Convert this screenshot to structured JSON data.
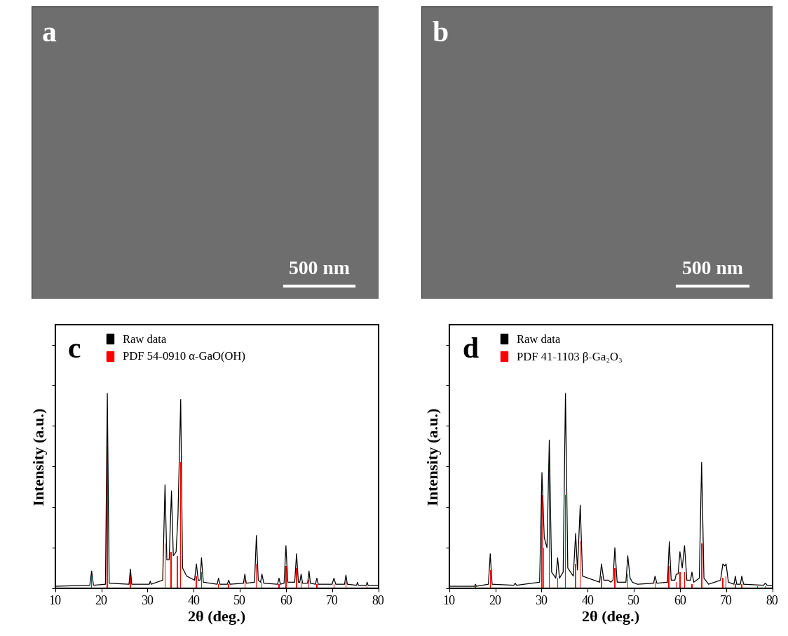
{
  "images": [
    {
      "label": "a",
      "scale_bar": "500 nm"
    },
    {
      "label": "b",
      "scale_bar": "500 nm"
    }
  ],
  "chart_data": [
    {
      "type": "line",
      "annotations": [
        "c"
      ],
      "x_label": "2θ (deg.)",
      "y_label": "Intensity (a.u.)",
      "xlim": [
        10,
        80
      ],
      "xticks": [
        10,
        20,
        30,
        40,
        50,
        60,
        70,
        80
      ],
      "ylim": [
        0,
        130
      ],
      "yticks": [
        0,
        20,
        40,
        60,
        80,
        100,
        120
      ],
      "tick_labels": "x",
      "legend": "upper left",
      "series": [
        {
          "name": "Raw data",
          "type": "line",
          "color": "#000000",
          "x": [
            10,
            17.5,
            17.9,
            18.3,
            20.9,
            21.3,
            21.7,
            26.0,
            26.3,
            26.6,
            30.4,
            30.6,
            30.8,
            33.3,
            33.8,
            34.2,
            34.7,
            35.2,
            35.6,
            36.2,
            36.6,
            37.2,
            37.6,
            38.5,
            40.2,
            40.6,
            41.0,
            41.4,
            41.7,
            42.1,
            45.1,
            45.4,
            45.7,
            47.3,
            47.6,
            47.9,
            50.8,
            51.1,
            51.4,
            53.2,
            53.6,
            54.0,
            54.5,
            54.8,
            55.2,
            58.2,
            58.5,
            58.8,
            59.6,
            60.0,
            60.4,
            61.9,
            62.3,
            62.7,
            63.0,
            63.3,
            63.6,
            64.7,
            65.0,
            65.3,
            66.4,
            66.7,
            67.0,
            70.0,
            70.4,
            70.8,
            72.7,
            73.0,
            73.3,
            75.3,
            75.5,
            75.7,
            77.4,
            77.6,
            77.8,
            80
          ],
          "values": [
            1,
            1.5,
            8.5,
            1.5,
            2,
            96,
            2.5,
            2,
            9.5,
            2,
            2,
            3.5,
            2,
            4,
            51,
            14,
            14,
            48,
            16,
            18,
            35,
            93,
            10,
            6,
            4,
            12,
            4,
            4,
            15,
            3,
            2,
            5,
            2,
            2,
            4,
            2,
            2.5,
            7,
            2.5,
            3,
            26,
            4,
            3,
            7,
            2.5,
            2,
            5,
            2,
            2.5,
            21,
            3,
            3,
            17,
            3,
            3,
            7,
            2.5,
            2.5,
            8.5,
            2.5,
            2,
            5,
            2,
            2,
            5,
            2,
            2,
            6.5,
            2,
            1.5,
            3,
            1.5,
            1.5,
            3,
            1.5,
            1.5
          ]
        },
        {
          "name": "PDF 54-0910 α-GaO(OH)",
          "type": "bar",
          "color": "#ff0000",
          "x": [
            17.9,
            21.2,
            21.3,
            26.3,
            33.8,
            35.1,
            36.5,
            37.2,
            40.6,
            41.7,
            45.4,
            47.6,
            51.1,
            53.6,
            54.8,
            58.5,
            60.0,
            62.3,
            63.3,
            65.0,
            66.7,
            70.4,
            73.0,
            77.6
          ],
          "values": [
            8,
            20,
            70,
            7,
            22,
            18,
            16,
            62,
            6,
            8,
            2,
            2,
            4,
            12,
            3,
            2,
            11,
            10,
            3,
            4,
            2,
            2,
            3,
            1
          ]
        }
      ]
    },
    {
      "type": "line",
      "annotations": [
        "d"
      ],
      "x_label": "2θ (deg.)",
      "y_label": "Intensity (a.u.)",
      "xlim": [
        10,
        80
      ],
      "xticks": [
        10,
        20,
        30,
        40,
        50,
        60,
        70,
        80
      ],
      "ylim": [
        0,
        130
      ],
      "yticks": [
        0,
        20,
        40,
        60,
        80,
        100,
        120
      ],
      "tick_labels": "x",
      "legend": "upper left",
      "series": [
        {
          "name": "Raw data",
          "type": "line",
          "color": "#000000",
          "x": [
            10,
            15.5,
            15.7,
            15.9,
            18.5,
            18.9,
            19.3,
            24.0,
            24.3,
            24.6,
            29.6,
            30.1,
            30.6,
            31.2,
            31.7,
            32.2,
            33.1,
            33.5,
            33.9,
            34.7,
            35.2,
            35.7,
            36.9,
            37.4,
            37.8,
            38.4,
            38.9,
            42.6,
            43.0,
            43.5,
            44.5,
            45.0,
            45.5,
            45.9,
            46.4,
            48.3,
            48.7,
            49.2,
            49.7,
            50.8,
            54.3,
            54.6,
            55.0,
            57.3,
            57.7,
            58.1,
            58.9,
            59.2,
            59.6,
            60.0,
            60.5,
            61.0,
            61.5,
            62.3,
            62.6,
            63.0,
            64.2,
            64.7,
            65.2,
            66.2,
            68.8,
            69.3,
            69.7,
            70.0,
            70.5,
            71.7,
            72.0,
            72.3,
            73.1,
            73.4,
            73.8,
            78.1,
            78.5,
            78.9,
            80
          ],
          "values": [
            1,
            1,
            2,
            1,
            2,
            17,
            2,
            1.5,
            2.5,
            1.5,
            3,
            57,
            25,
            20,
            73,
            8,
            5,
            15,
            5,
            8,
            96,
            10,
            6,
            27,
            9,
            41,
            6,
            3,
            12,
            4,
            4,
            3,
            4,
            20,
            3,
            3,
            16,
            5,
            3,
            2,
            2.5,
            6,
            2.5,
            3,
            23,
            4,
            4,
            7,
            7,
            18,
            10,
            21,
            4,
            4,
            8,
            3,
            5,
            62,
            5,
            2,
            4,
            12,
            11,
            12,
            3,
            2,
            6,
            2,
            2,
            6,
            2,
            1.5,
            2.5,
            1.5,
            1.5
          ]
        },
        {
          "name": "PDF 41-1103 β-Ga₂O₃",
          "type": "bar",
          "color": "#ff0000",
          "x": [
            15.7,
            18.9,
            30.1,
            30.5,
            31.7,
            33.5,
            35.2,
            37.4,
            38.4,
            43.0,
            45.9,
            48.7,
            54.6,
            57.6,
            59.2,
            60.0,
            61.0,
            62.6,
            64.7,
            69.3,
            70.0,
            72.0,
            73.4,
            76.8,
            78.5
          ],
          "values": [
            1,
            9,
            46,
            20,
            62,
            5,
            46,
            12,
            23,
            6,
            10,
            7,
            3,
            11,
            3,
            8,
            8,
            2,
            22,
            5,
            6,
            2,
            2,
            1,
            1
          ]
        }
      ]
    }
  ]
}
